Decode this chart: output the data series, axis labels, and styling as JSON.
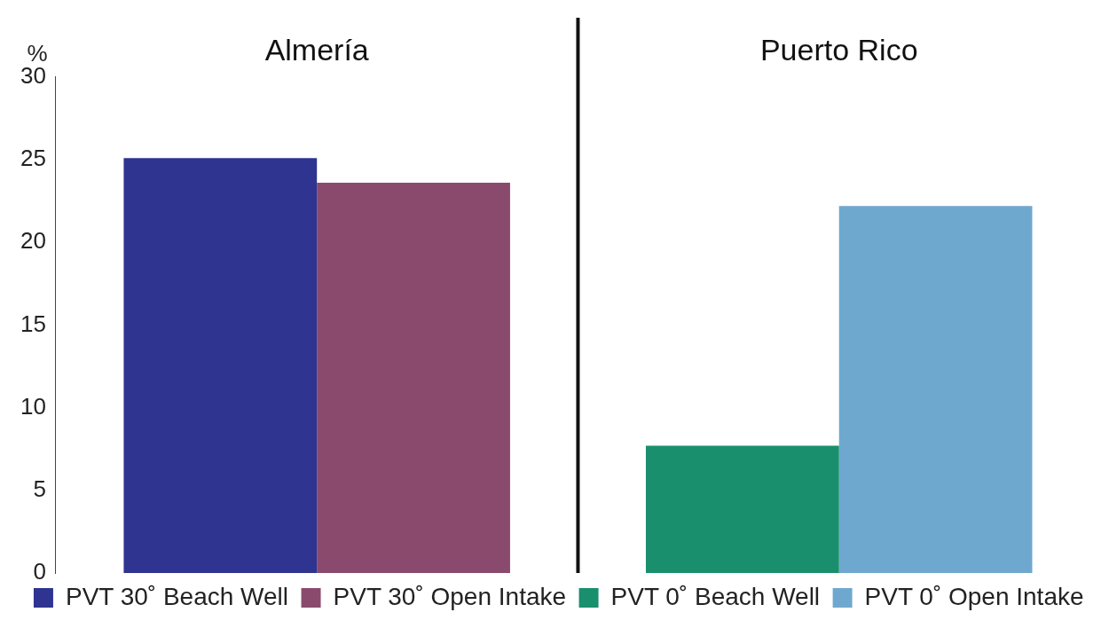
{
  "chart_data": {
    "type": "bar",
    "ylabel": "%",
    "categories": [
      "Almería",
      "Puerto Rico"
    ],
    "series": [
      {
        "name": "PVT 30˚ Beach Well",
        "color": "#2e3490",
        "values": [
          25.1,
          null
        ]
      },
      {
        "name": "PVT 30˚ Open Intake",
        "color": "#8a4a6e",
        "values": [
          23.6,
          null
        ]
      },
      {
        "name": "PVT 0˚ Beach Well",
        "color": "#1a8f6e",
        "values": [
          null,
          7.7
        ]
      },
      {
        "name": "PVT 0˚ Open Intake",
        "color": "#6fa8cf",
        "values": [
          null,
          22.2
        ]
      }
    ],
    "ylim": [
      0,
      30
    ],
    "yticks": [
      0,
      5,
      10,
      15,
      20,
      25,
      30
    ],
    "grid": false,
    "legend": "bottom"
  }
}
